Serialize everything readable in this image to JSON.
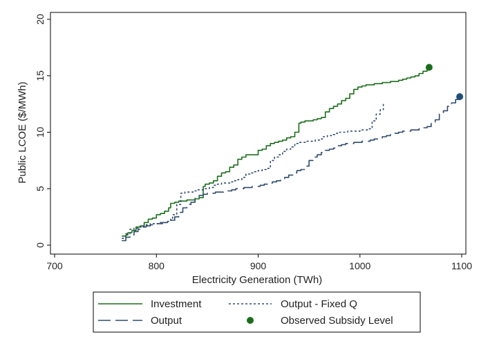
{
  "chart_data": {
    "type": "line",
    "xlabel": "Electricity Generation (TWh)",
    "ylabel": "Public LCOE ($/MWh)",
    "xlim": [
      700,
      1100
    ],
    "ylim": [
      0,
      20
    ],
    "xticks": [
      "700",
      "800",
      "900",
      "1000",
      "1100"
    ],
    "yticks": [
      "0",
      "5",
      "10",
      "15",
      "20"
    ],
    "grid": false,
    "legend_placement": "bottom",
    "series": [
      {
        "name": "Investment",
        "color": "#1a6e1a",
        "style": "solid",
        "x": [
          766,
          770,
          772,
          776,
          780,
          784,
          788,
          792,
          796,
          800,
          804,
          808,
          812,
          814,
          818,
          822,
          826,
          830,
          834,
          838,
          842,
          846,
          848,
          852,
          856,
          860,
          864,
          868,
          872,
          876,
          880,
          884,
          888,
          892,
          896,
          900,
          904,
          908,
          912,
          916,
          920,
          924,
          928,
          932,
          936,
          940,
          942,
          946,
          950,
          954,
          958,
          962,
          966,
          970,
          974,
          978,
          982,
          986,
          990,
          994,
          998,
          1002,
          1006,
          1010,
          1014,
          1018,
          1022,
          1026,
          1030,
          1034,
          1038,
          1042,
          1046,
          1050,
          1054,
          1058,
          1062,
          1066,
          1068
        ],
        "y": [
          0.8,
          0.9,
          1.1,
          1.3,
          1.6,
          1.7,
          2.0,
          2.3,
          2.4,
          2.7,
          2.8,
          3.0,
          3.3,
          3.7,
          3.8,
          3.9,
          3.9,
          4.0,
          4.0,
          4.1,
          4.2,
          5.2,
          5.4,
          5.5,
          5.7,
          6.1,
          6.4,
          6.5,
          6.9,
          7.1,
          7.6,
          7.8,
          8.0,
          8.0,
          8.0,
          8.4,
          8.5,
          8.8,
          9.0,
          9.1,
          9.2,
          9.3,
          9.5,
          9.6,
          10.0,
          10.8,
          10.9,
          11.0,
          11.0,
          11.1,
          11.2,
          11.3,
          11.8,
          12.1,
          12.3,
          12.5,
          12.8,
          13.0,
          13.4,
          13.8,
          14.0,
          14.1,
          14.2,
          14.2,
          14.3,
          14.3,
          14.4,
          14.4,
          14.5,
          14.5,
          14.6,
          14.7,
          14.8,
          14.9,
          15.0,
          15.2,
          15.4,
          15.6,
          15.75
        ]
      },
      {
        "name": "Output - Fixed Q",
        "color": "#2e4a6b",
        "style": "dotted",
        "x": [
          766,
          770,
          774,
          778,
          782,
          786,
          790,
          794,
          798,
          802,
          806,
          810,
          814,
          816,
          820,
          824,
          828,
          832,
          836,
          840,
          844,
          848,
          852,
          856,
          860,
          864,
          868,
          872,
          876,
          880,
          884,
          888,
          892,
          896,
          900,
          904,
          908,
          912,
          916,
          920,
          924,
          928,
          932,
          936,
          940,
          944,
          948,
          952,
          956,
          960,
          964,
          968,
          972,
          976,
          980,
          984,
          988,
          992,
          996,
          1000,
          1004,
          1008,
          1012,
          1016,
          1020,
          1023
        ],
        "y": [
          0.6,
          1.0,
          1.4,
          1.5,
          1.6,
          1.7,
          1.8,
          1.9,
          1.9,
          2.0,
          2.0,
          2.1,
          2.3,
          2.7,
          3.6,
          4.6,
          4.7,
          4.7,
          4.8,
          4.9,
          4.9,
          5.0,
          5.1,
          5.3,
          5.4,
          5.5,
          5.5,
          5.6,
          5.7,
          5.8,
          6.0,
          6.3,
          6.4,
          6.5,
          6.6,
          6.7,
          6.8,
          7.5,
          7.8,
          8.0,
          8.3,
          8.5,
          8.7,
          9.0,
          9.1,
          9.1,
          9.2,
          9.2,
          9.3,
          9.4,
          9.6,
          9.7,
          9.8,
          9.9,
          10.0,
          10.0,
          10.1,
          10.1,
          10.1,
          10.2,
          10.2,
          10.3,
          11.0,
          11.6,
          12.0,
          12.5
        ]
      },
      {
        "name": "Output",
        "color": "#2e4a6b",
        "style": "dashed",
        "x": [
          766,
          770,
          774,
          778,
          782,
          786,
          790,
          794,
          798,
          802,
          806,
          810,
          814,
          818,
          822,
          826,
          830,
          834,
          838,
          842,
          846,
          850,
          854,
          858,
          862,
          866,
          870,
          874,
          878,
          882,
          886,
          890,
          894,
          898,
          902,
          906,
          910,
          914,
          918,
          922,
          926,
          930,
          934,
          938,
          942,
          946,
          950,
          954,
          958,
          962,
          966,
          970,
          974,
          978,
          982,
          986,
          990,
          994,
          998,
          1002,
          1006,
          1010,
          1014,
          1018,
          1022,
          1026,
          1030,
          1034,
          1038,
          1042,
          1046,
          1050,
          1054,
          1058,
          1062,
          1066,
          1070,
          1074,
          1078,
          1082,
          1086,
          1090,
          1094,
          1098
        ],
        "y": [
          0.4,
          0.7,
          0.9,
          1.2,
          1.4,
          1.6,
          1.7,
          1.8,
          1.9,
          1.9,
          2.0,
          2.0,
          2.2,
          2.5,
          2.9,
          3.3,
          3.6,
          3.8,
          4.2,
          4.4,
          4.5,
          4.6,
          4.6,
          4.7,
          4.7,
          4.8,
          4.8,
          4.9,
          5.0,
          5.0,
          5.1,
          5.1,
          5.2,
          5.2,
          5.3,
          5.4,
          5.5,
          5.6,
          5.7,
          5.8,
          6.0,
          6.2,
          6.4,
          6.6,
          6.7,
          7.0,
          7.5,
          7.8,
          8.0,
          8.2,
          8.4,
          8.5,
          8.6,
          8.8,
          8.9,
          9.0,
          9.0,
          9.1,
          9.1,
          9.2,
          9.2,
          9.3,
          9.4,
          9.5,
          9.6,
          9.7,
          9.8,
          9.9,
          10.0,
          10.1,
          10.1,
          10.2,
          10.2,
          10.3,
          10.4,
          10.5,
          10.9,
          11.1,
          11.6,
          11.9,
          12.3,
          12.6,
          12.9,
          13.15
        ]
      }
    ],
    "points": [
      {
        "name": "Observed Subsidy Level",
        "x": 1068,
        "y": 15.75,
        "color": "#1a6e1a"
      },
      {
        "name": "Observed Subsidy Level",
        "x": 1098,
        "y": 13.15,
        "color": "#1f4e79"
      }
    ],
    "legend": {
      "entries": [
        {
          "label": "Investment",
          "color": "#1a6e1a",
          "style": "solid"
        },
        {
          "label": "Output - Fixed Q",
          "color": "#2e4a6b",
          "style": "dotted"
        },
        {
          "label": "Output",
          "color": "#2e4a6b",
          "style": "dashed"
        },
        {
          "label": "Observed Subsidy Level",
          "color": "#1a6e1a",
          "style": "marker"
        }
      ]
    }
  }
}
